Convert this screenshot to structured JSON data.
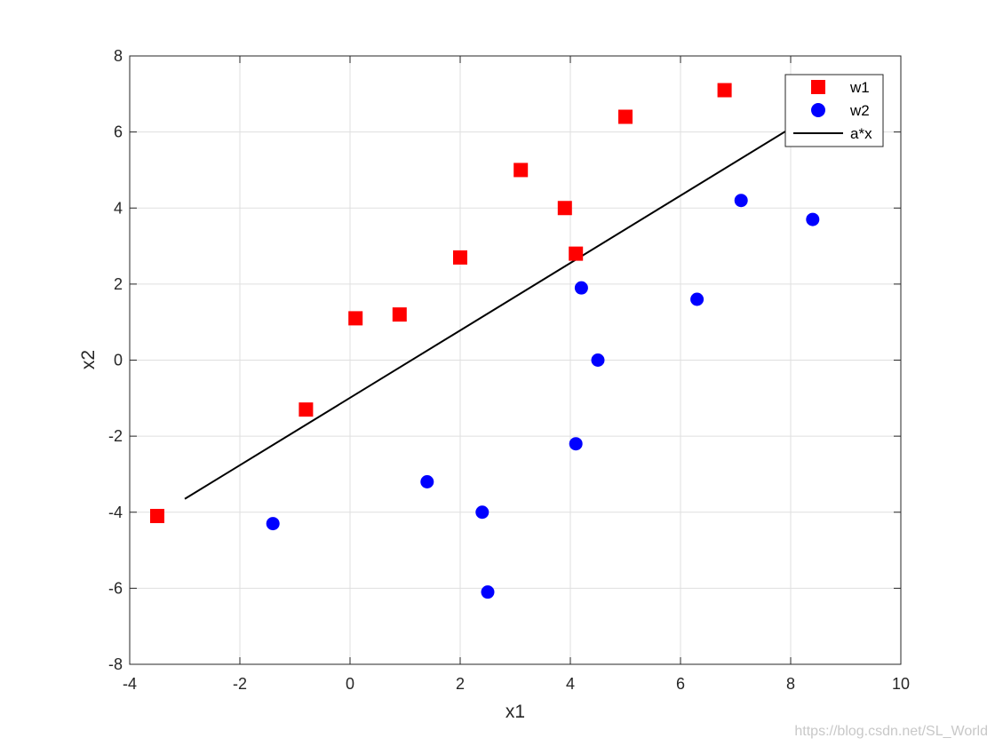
{
  "chart_data": {
    "type": "scatter",
    "title": "",
    "xlabel": "x1",
    "ylabel": "x2",
    "xlim": [
      -4,
      10
    ],
    "ylim": [
      -8,
      8
    ],
    "xticks": [
      -4,
      -2,
      0,
      2,
      4,
      6,
      8,
      10
    ],
    "yticks": [
      -8,
      -6,
      -4,
      -2,
      0,
      2,
      4,
      6,
      8
    ],
    "grid": true,
    "legend_position": "top-right",
    "series": [
      {
        "name": "w1",
        "kind": "scatter",
        "marker": "square",
        "color": "#ff0000",
        "points": [
          [
            -3.5,
            -4.1
          ],
          [
            -0.8,
            -1.3
          ],
          [
            0.1,
            1.1
          ],
          [
            0.9,
            1.2
          ],
          [
            2.0,
            2.7
          ],
          [
            3.1,
            5.0
          ],
          [
            3.9,
            4.0
          ],
          [
            4.1,
            2.8
          ],
          [
            5.0,
            6.4
          ],
          [
            6.8,
            7.1
          ]
        ]
      },
      {
        "name": "w2",
        "kind": "scatter",
        "marker": "circle",
        "color": "#0000ff",
        "points": [
          [
            -1.4,
            -4.3
          ],
          [
            1.4,
            -3.2
          ],
          [
            2.4,
            -4.0
          ],
          [
            2.5,
            -6.1
          ],
          [
            4.1,
            -2.2
          ],
          [
            4.2,
            1.9
          ],
          [
            4.5,
            0.0
          ],
          [
            6.3,
            1.6
          ],
          [
            7.1,
            4.2
          ],
          [
            8.4,
            3.7
          ]
        ]
      },
      {
        "name": "a*x",
        "kind": "line",
        "color": "#000000",
        "points": [
          [
            -3.0,
            -3.65
          ],
          [
            8.0,
            6.1
          ]
        ]
      }
    ]
  },
  "watermark": "https://blog.csdn.net/SL_World"
}
